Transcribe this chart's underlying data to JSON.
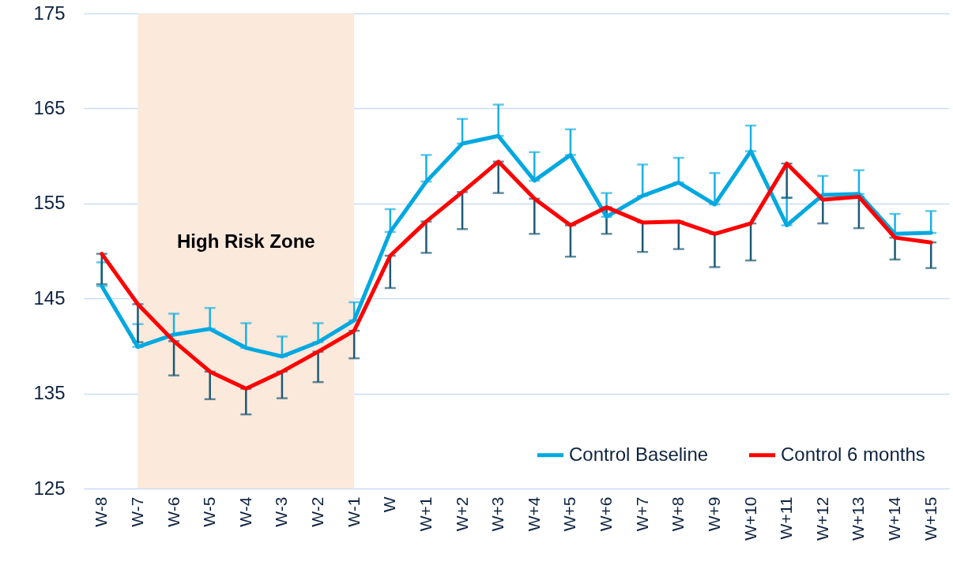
{
  "chart_data": {
    "type": "line",
    "categories": [
      "W-8",
      "W-7",
      "W-6",
      "W-5",
      "W-4",
      "W-3",
      "W-2",
      "W-1",
      "W",
      "W+1",
      "W+2",
      "W+3",
      "W+4",
      "W+5",
      "W+6",
      "W+7",
      "W+8",
      "W+9",
      "W+10",
      "W+11",
      "W+12",
      "W+13",
      "W+14",
      "W+15"
    ],
    "series": [
      {
        "name": "Control Baseline",
        "color": "#00a8e0",
        "values": [
          146.3,
          139.9,
          141.2,
          141.8,
          139.8,
          138.9,
          140.4,
          142.7,
          152.0,
          157.3,
          161.3,
          162.1,
          157.4,
          160.1,
          153.6,
          155.8,
          157.2,
          154.9,
          160.5,
          152.7,
          155.9,
          156.0,
          151.8,
          151.9
        ],
        "errors": [
          [
            146.3,
            148.8
          ],
          [
            139.9,
            142.3
          ],
          [
            141.2,
            143.4
          ],
          [
            141.8,
            144.0
          ],
          [
            139.8,
            142.4
          ],
          [
            138.9,
            141.0
          ],
          [
            140.4,
            142.4
          ],
          [
            142.7,
            144.6
          ],
          [
            152.0,
            154.4
          ],
          [
            157.3,
            160.1
          ],
          [
            161.3,
            163.9
          ],
          [
            162.1,
            165.4
          ],
          [
            157.4,
            160.4
          ],
          [
            160.1,
            162.8
          ],
          [
            153.6,
            156.1
          ],
          [
            155.8,
            159.1
          ],
          [
            157.2,
            159.8
          ],
          [
            154.9,
            158.2
          ],
          [
            160.5,
            163.2
          ],
          [
            152.7,
            155.6
          ],
          [
            155.9,
            157.9
          ],
          [
            156.0,
            158.5
          ],
          [
            151.8,
            153.9
          ],
          [
            151.9,
            154.2
          ]
        ]
      },
      {
        "name": "Control 6 months",
        "color": "#ff0000",
        "values": [
          149.7,
          144.4,
          140.5,
          137.3,
          135.5,
          137.3,
          139.4,
          141.6,
          149.5,
          153.1,
          156.2,
          159.4,
          155.5,
          152.7,
          154.6,
          153.0,
          153.1,
          151.8,
          152.9,
          159.2,
          155.4,
          155.7,
          151.4,
          150.9
        ],
        "errors": [
          [
            146.5,
            149.7
          ],
          [
            140.4,
            144.4
          ],
          [
            136.9,
            140.5
          ],
          [
            134.4,
            137.3
          ],
          [
            132.8,
            135.5
          ],
          [
            134.5,
            137.3
          ],
          [
            136.2,
            139.4
          ],
          [
            138.7,
            141.6
          ],
          [
            146.1,
            149.5
          ],
          [
            149.8,
            153.1
          ],
          [
            152.3,
            156.2
          ],
          [
            156.1,
            159.4
          ],
          [
            151.8,
            155.5
          ],
          [
            149.4,
            152.7
          ],
          [
            151.8,
            154.6
          ],
          [
            149.9,
            153.0
          ],
          [
            150.2,
            153.1
          ],
          [
            148.3,
            151.8
          ],
          [
            149.0,
            152.9
          ],
          [
            155.6,
            159.2
          ],
          [
            152.9,
            155.4
          ],
          [
            152.4,
            155.7
          ],
          [
            149.1,
            151.4
          ],
          [
            148.2,
            150.9
          ]
        ]
      }
    ],
    "ylim": [
      125,
      175
    ],
    "yticks": [
      125,
      135,
      145,
      155,
      165,
      175
    ],
    "bands": [
      {
        "axis": "x",
        "from": "W-7",
        "to": "W-1",
        "label": "High Risk Zone",
        "color": "#fbe9dc"
      }
    ],
    "grid": "y",
    "legend": "bottom right",
    "marker": "none",
    "line_style": "solid"
  }
}
